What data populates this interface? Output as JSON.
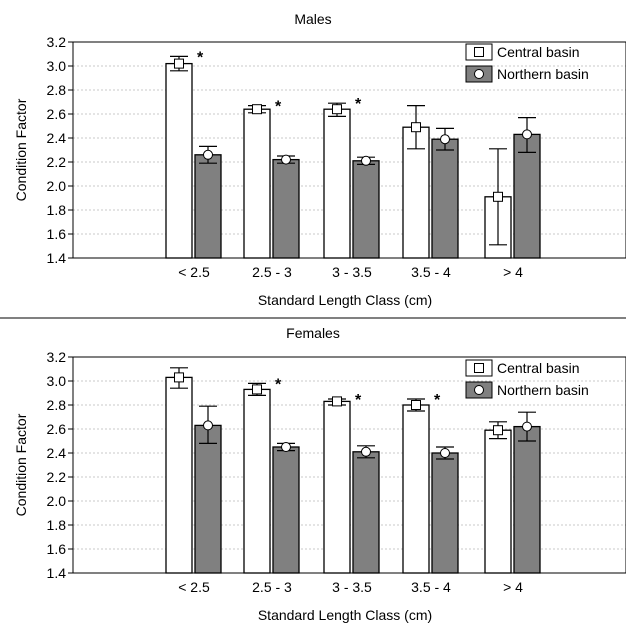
{
  "chart_data": [
    {
      "type": "bar",
      "title": "Males",
      "xlabel": "Standard Length Class (cm)",
      "ylabel": "Condition Factor",
      "categories": [
        "< 2.5",
        "2.5 - 3",
        "3 - 3.5",
        "3.5 - 4",
        "> 4"
      ],
      "ylim": [
        1.4,
        3.2
      ],
      "yticks": [
        "1.4",
        "1.6",
        "1.8",
        "2.0",
        "2.2",
        "2.4",
        "2.6",
        "2.8",
        "3.0",
        "3.2"
      ],
      "grid": true,
      "legend_position": "top-right",
      "series": [
        {
          "name": "Central basin",
          "color": "#ffffff",
          "marker": "square",
          "values": [
            3.02,
            2.64,
            2.64,
            2.49,
            1.91
          ],
          "error_low": [
            2.96,
            2.61,
            2.58,
            2.31,
            1.51
          ],
          "error_high": [
            3.08,
            2.67,
            2.69,
            2.67,
            2.31
          ]
        },
        {
          "name": "Northern basin",
          "color": "#808080",
          "marker": "circle",
          "values": [
            2.26,
            2.22,
            2.21,
            2.39,
            2.43
          ],
          "error_low": [
            2.19,
            2.19,
            2.18,
            2.3,
            2.28
          ],
          "error_high": [
            2.33,
            2.25,
            2.24,
            2.48,
            2.57
          ]
        }
      ],
      "significance": [
        "*",
        "*",
        "*",
        "",
        ""
      ]
    },
    {
      "type": "bar",
      "title": "Females",
      "xlabel": "Standard Length Class (cm)",
      "ylabel": "Condition Factor",
      "categories": [
        "< 2.5",
        "2.5 - 3",
        "3 - 3.5",
        "3.5 - 4",
        "> 4"
      ],
      "ylim": [
        1.4,
        3.2
      ],
      "yticks": [
        "1.4",
        "1.6",
        "1.8",
        "2.0",
        "2.2",
        "2.4",
        "2.6",
        "2.8",
        "3.0",
        "3.2"
      ],
      "grid": true,
      "legend_position": "top-right",
      "series": [
        {
          "name": "Central basin",
          "color": "#ffffff",
          "marker": "square",
          "values": [
            3.03,
            2.93,
            2.83,
            2.8,
            2.59
          ],
          "error_low": [
            2.94,
            2.88,
            2.8,
            2.75,
            2.52
          ],
          "error_high": [
            3.11,
            2.98,
            2.85,
            2.85,
            2.66
          ]
        },
        {
          "name": "Northern basin",
          "color": "#808080",
          "marker": "circle",
          "values": [
            2.63,
            2.45,
            2.41,
            2.4,
            2.62
          ],
          "error_low": [
            2.48,
            2.42,
            2.36,
            2.35,
            2.5
          ],
          "error_high": [
            2.79,
            2.48,
            2.46,
            2.45,
            2.74
          ]
        }
      ],
      "significance": [
        "",
        "*",
        "*",
        "*",
        ""
      ]
    }
  ]
}
